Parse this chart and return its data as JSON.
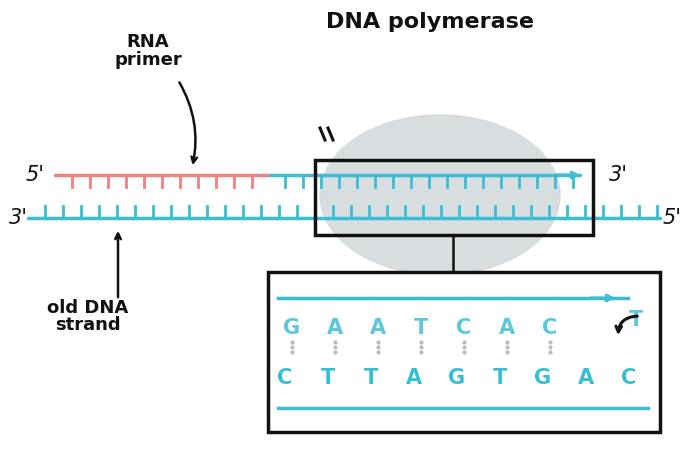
{
  "bg_color": "#ffffff",
  "cyan_color": "#3bbdd4",
  "light_cyan_color": "#5cc8db",
  "salmon_color": "#f08080",
  "gray_blob_color": "#d4dadd",
  "black_color": "#111111",
  "seq_top": [
    "G",
    "A",
    "A",
    "T",
    "C",
    "A",
    "C"
  ],
  "seq_bot": [
    "C",
    "T",
    "T",
    "A",
    "G",
    "T",
    "G",
    "A",
    "C"
  ],
  "seq_new_letter": "T"
}
